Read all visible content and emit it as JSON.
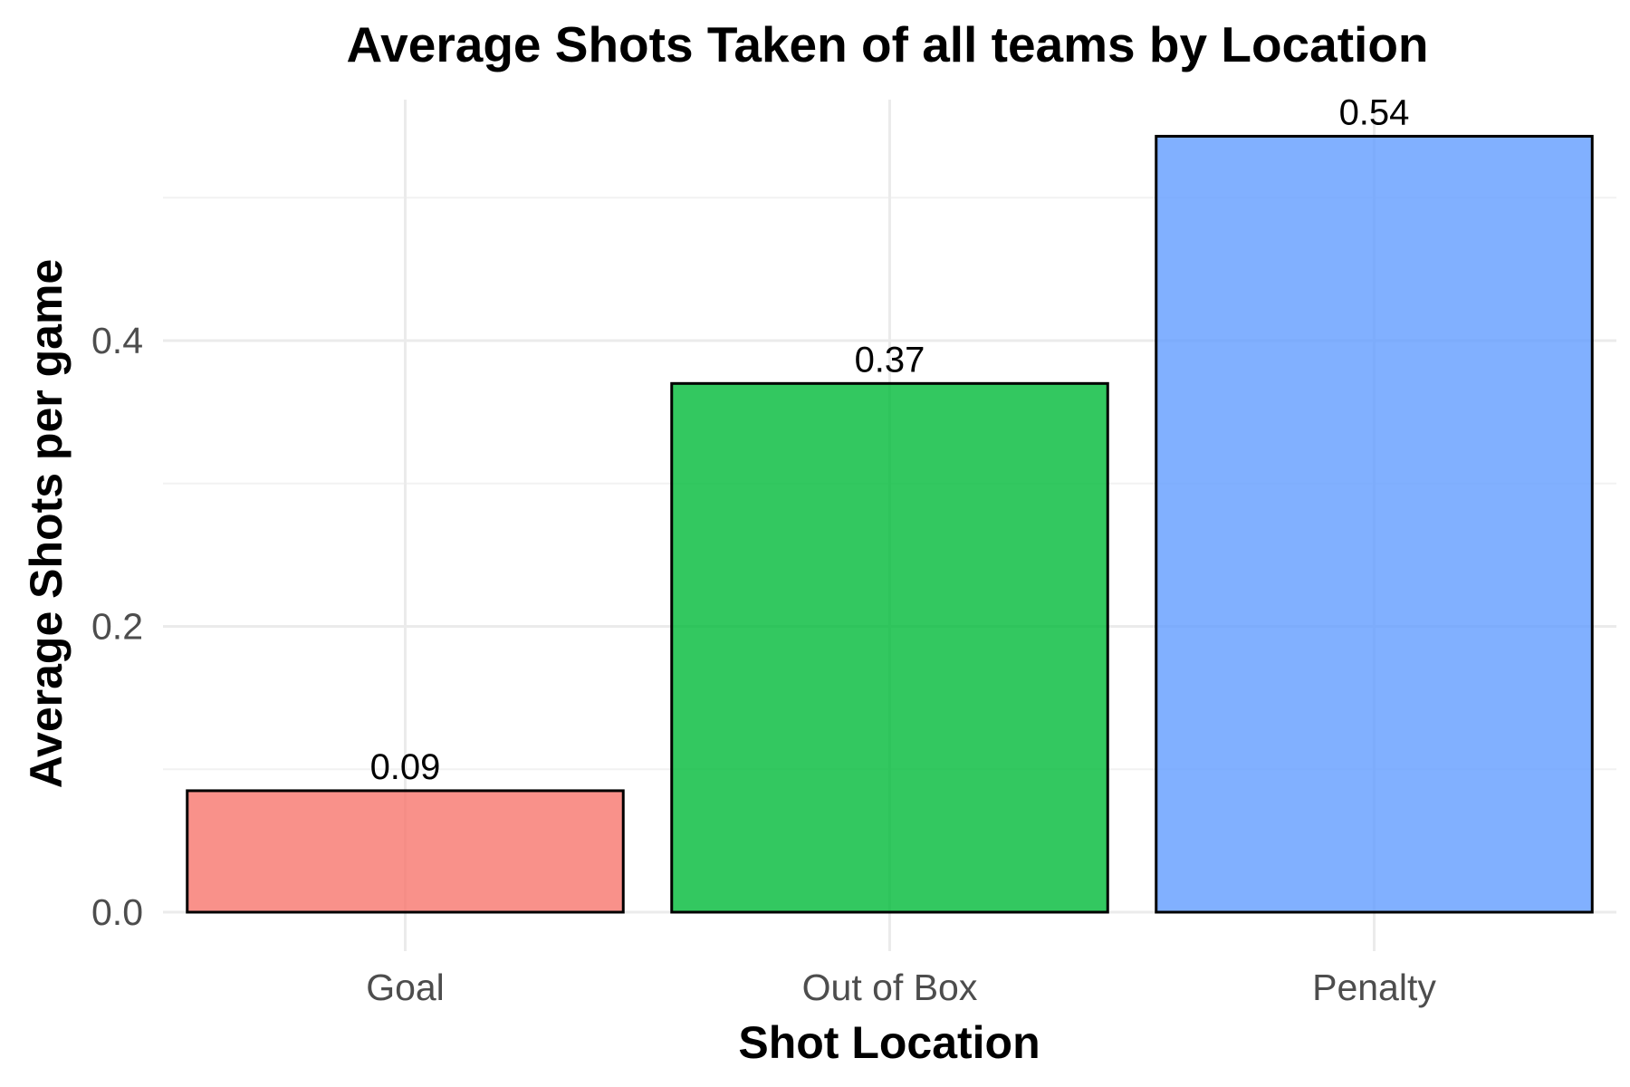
{
  "chart_data": {
    "type": "bar",
    "title": "Average Shots Taken of all teams by Location",
    "xlabel": "Shot Location",
    "ylabel": "Average Shots per game",
    "categories": [
      "Goal",
      "Out of Box",
      "Penalty"
    ],
    "values": [
      0.085,
      0.37,
      0.543
    ],
    "data_labels": [
      "0.09",
      "0.37",
      "0.54"
    ],
    "colors": [
      "#F8766D",
      "#00BA38",
      "#619CFF"
    ],
    "ylim": [
      0,
      0.57
    ],
    "y_ticks": [
      0.0,
      0.2,
      0.4
    ],
    "y_tick_labels": [
      "0.0",
      "0.2",
      "0.4"
    ],
    "grid": true,
    "legend": "none"
  }
}
